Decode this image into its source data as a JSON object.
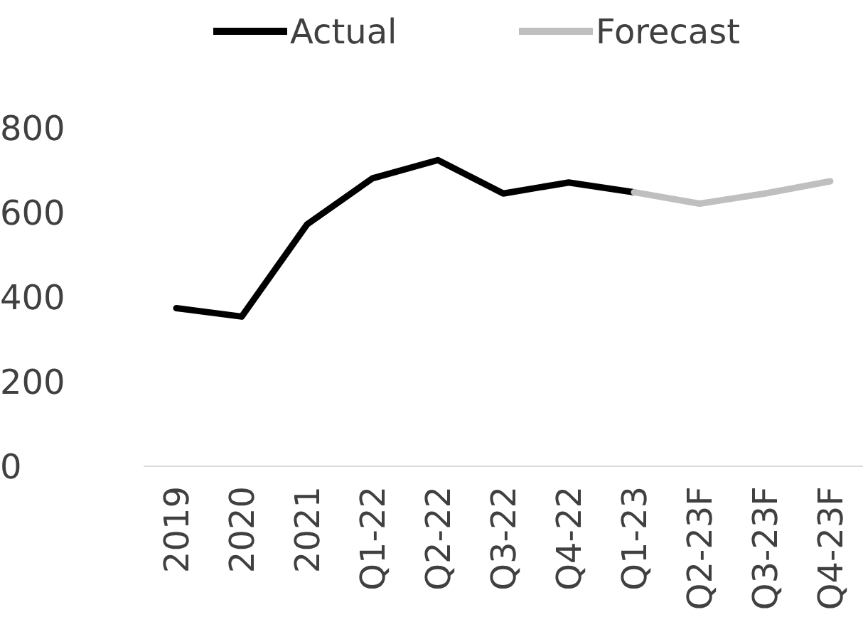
{
  "chart_data": {
    "type": "line",
    "categories": [
      "2019",
      "2020",
      "2021",
      "Q1-22",
      "Q2-22",
      "Q3-22",
      "Q4-22",
      "Q1-23",
      "Q2-23F",
      "Q3-23F",
      "Q4-23F"
    ],
    "series": [
      {
        "name": "Actual",
        "color": "#000000",
        "values": [
          374,
          354,
          572,
          681,
          724,
          645,
          671,
          648,
          null,
          null,
          null
        ]
      },
      {
        "name": "Forecast",
        "color": "#bfbfbf",
        "values": [
          null,
          null,
          null,
          null,
          null,
          null,
          null,
          648,
          621,
          645,
          674
        ]
      }
    ],
    "ylim": [
      0,
      800
    ],
    "yticks": [
      0,
      200,
      400,
      600,
      800
    ],
    "grid": false,
    "legend": "top",
    "marker": "none",
    "line_style": "solid"
  }
}
